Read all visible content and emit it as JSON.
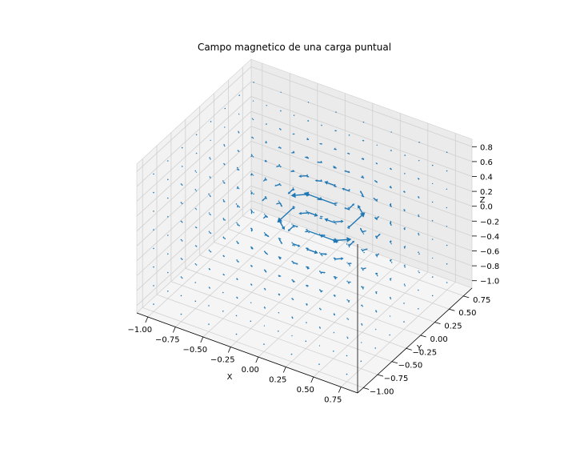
{
  "chart_data": {
    "type": "quiver3d",
    "title": "Campo magnetico de una carga puntual",
    "xlabel": "X",
    "ylabel": "Y",
    "zlabel": "Z",
    "xlim": [
      -1.1,
      0.9
    ],
    "ylim": [
      -1.1,
      0.9
    ],
    "zlim": [
      -1.1,
      0.9
    ],
    "xticks": [
      "−1.00",
      "−0.75",
      "−0.50",
      "−0.25",
      "0.00",
      "0.25",
      "0.50",
      "0.75"
    ],
    "yticks": [
      "−1.00",
      "−0.75",
      "−0.50",
      "−0.25",
      "0.00",
      "0.25",
      "0.50",
      "0.75"
    ],
    "zticks": [
      "−1.0",
      "−0.8",
      "−0.6",
      "−0.4",
      "−0.2",
      "0.0",
      "0.2",
      "0.4",
      "0.6",
      "0.8"
    ],
    "grid": [
      -1.0,
      -0.75,
      -0.5,
      -0.25,
      0.0,
      0.25,
      0.5,
      0.75
    ],
    "field": "B = (-y, x, 0) / r^3",
    "arrow_color": "#1f77b4",
    "pane_color": "#f2f2f2",
    "gridline_color": "#d0d0d0",
    "grid_on": true
  }
}
